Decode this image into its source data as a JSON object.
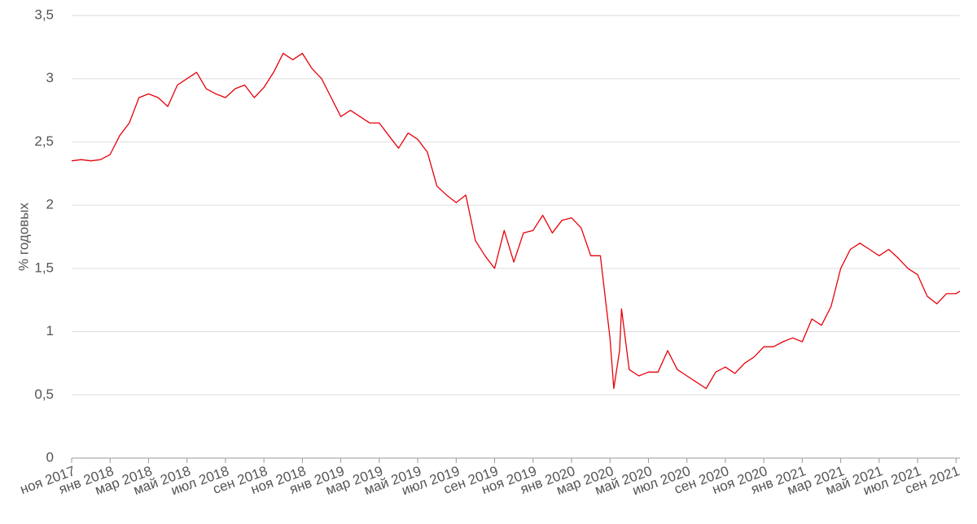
{
  "chart_data": {
    "type": "line",
    "ylabel": "% годовых",
    "color": "#e8000b",
    "x": [
      0,
      0.5,
      1,
      1.5,
      2,
      2.5,
      3,
      3.5,
      4,
      4.5,
      5,
      5.5,
      6,
      6.5,
      7,
      7.5,
      8,
      8.5,
      9,
      9.5,
      10,
      10.5,
      11,
      11.5,
      12,
      12.5,
      13,
      13.5,
      14,
      14.5,
      15,
      15.5,
      16,
      16.5,
      17,
      17.5,
      18,
      18.5,
      19,
      19.5,
      20,
      20.5,
      21,
      21.5,
      22,
      22.5,
      23,
      23.5,
      24,
      24.5,
      25,
      25.5,
      26,
      26.5,
      27,
      27.5,
      28,
      28.2,
      28.5,
      28.6,
      29,
      29.5,
      30,
      30.5,
      31,
      31.5,
      32,
      32.5,
      33,
      33.5,
      34,
      34.5,
      35,
      35.5,
      36,
      36.5,
      37,
      37.5,
      38,
      38.5,
      39,
      39.5,
      40,
      40.5,
      41,
      41.5,
      42,
      42.5,
      43,
      43.5,
      44,
      44.5,
      45,
      45.5,
      46,
      46.2
    ],
    "values": [
      2.35,
      2.36,
      2.35,
      2.36,
      2.4,
      2.55,
      2.65,
      2.85,
      2.88,
      2.85,
      2.78,
      2.95,
      3.0,
      3.05,
      2.92,
      2.88,
      2.85,
      2.92,
      2.95,
      2.85,
      2.93,
      3.05,
      3.2,
      3.15,
      3.2,
      3.08,
      3.0,
      2.85,
      2.7,
      2.75,
      2.7,
      2.65,
      2.65,
      2.55,
      2.45,
      2.57,
      2.52,
      2.42,
      2.15,
      2.08,
      2.02,
      2.08,
      1.72,
      1.6,
      1.5,
      1.8,
      1.55,
      1.78,
      1.8,
      1.92,
      1.78,
      1.88,
      1.9,
      1.82,
      1.6,
      1.6,
      0.95,
      0.55,
      0.85,
      1.18,
      0.7,
      0.65,
      0.68,
      0.68,
      0.85,
      0.7,
      0.65,
      0.6,
      0.55,
      0.68,
      0.72,
      0.67,
      0.75,
      0.8,
      0.88,
      0.88,
      0.92,
      0.95,
      0.92,
      1.1,
      1.05,
      1.2,
      1.5,
      1.65,
      1.7,
      1.65,
      1.6,
      1.65,
      1.58,
      1.5,
      1.45,
      1.28,
      1.22,
      1.3,
      1.3,
      1.32
    ],
    "xlim": [
      0,
      46.2
    ],
    "xticks": [
      {
        "value": 0,
        "label": "ноя 2017"
      },
      {
        "value": 2,
        "label": "янв 2018"
      },
      {
        "value": 4,
        "label": "мар 2018"
      },
      {
        "value": 6,
        "label": "май 2018"
      },
      {
        "value": 8,
        "label": "июл 2018"
      },
      {
        "value": 10,
        "label": "сен 2018"
      },
      {
        "value": 12,
        "label": "ноя 2018"
      },
      {
        "value": 14,
        "label": "янв 2019"
      },
      {
        "value": 16,
        "label": "мар 2019"
      },
      {
        "value": 18,
        "label": "май 2019"
      },
      {
        "value": 20,
        "label": "июл 2019"
      },
      {
        "value": 22,
        "label": "сен 2019"
      },
      {
        "value": 24,
        "label": "ноя 2019"
      },
      {
        "value": 26,
        "label": "янв 2020"
      },
      {
        "value": 28,
        "label": "мар 2020"
      },
      {
        "value": 30,
        "label": "май 2020"
      },
      {
        "value": 32,
        "label": "июл 2020"
      },
      {
        "value": 34,
        "label": "сен 2020"
      },
      {
        "value": 36,
        "label": "ноя 2020"
      },
      {
        "value": 38,
        "label": "янв 2021"
      },
      {
        "value": 40,
        "label": "мар 2021"
      },
      {
        "value": 42,
        "label": "май 2021"
      },
      {
        "value": 44,
        "label": "июл 2021"
      },
      {
        "value": 46,
        "label": "сен 2021"
      }
    ],
    "ylim": [
      0,
      3.5
    ],
    "yticks": [
      0,
      {
        "value": 0.5,
        "label": "0,5"
      },
      1,
      {
        "value": 1.5,
        "label": "1,5"
      },
      2,
      {
        "value": 2.5,
        "label": "2,5"
      },
      3,
      {
        "value": 3.5,
        "label": "3,5"
      }
    ],
    "grid": true
  }
}
